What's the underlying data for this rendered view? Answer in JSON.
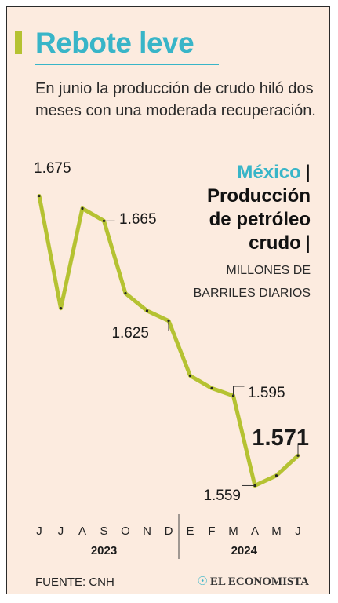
{
  "header": {
    "title": "Rebote leve",
    "subtitle": "En junio la producción de crudo hiló dos meses con una moderada recuperación."
  },
  "legend": {
    "country": "México",
    "separator": "|",
    "metric_line1": "Producción",
    "metric_line2": "de petróleo",
    "metric_line3": "crudo",
    "units_line1": "MILLONES DE",
    "units_line2": "BARRILES DIARIOS"
  },
  "footer": {
    "source": "FUENTE:  CNH",
    "logo": "EL ECONOMISTA",
    "logo_mark": "☉"
  },
  "colors": {
    "line": "#b5c232",
    "title": "#38b5c8",
    "accent_bar": "#b5c232",
    "background": "#fcebdf"
  },
  "chart_data": {
    "type": "line",
    "title": "",
    "x": [
      "J",
      "J",
      "A",
      "S",
      "O",
      "N",
      "D",
      "E",
      "F",
      "M",
      "A",
      "M",
      "J"
    ],
    "years": [
      {
        "label": "2023",
        "from": 0,
        "to": 6
      },
      {
        "label": "2024",
        "from": 7,
        "to": 12
      }
    ],
    "series": [
      {
        "values": [
          1.675,
          1.63,
          1.67,
          1.665,
          1.636,
          1.629,
          1.625,
          1.603,
          1.598,
          1.595,
          1.559,
          1.563,
          1.571
        ]
      }
    ],
    "annotations": [
      {
        "index": 0,
        "label": "1.675"
      },
      {
        "index": 3,
        "label": "1.665"
      },
      {
        "index": 6,
        "label": "1.625"
      },
      {
        "index": 9,
        "label": "1.595"
      },
      {
        "index": 10,
        "label": "1.559"
      },
      {
        "index": 12,
        "label": "1.571",
        "highlight": true
      }
    ],
    "ylim": [
      1.556,
      1.678
    ],
    "grid": false,
    "legend_position": "top-right"
  }
}
